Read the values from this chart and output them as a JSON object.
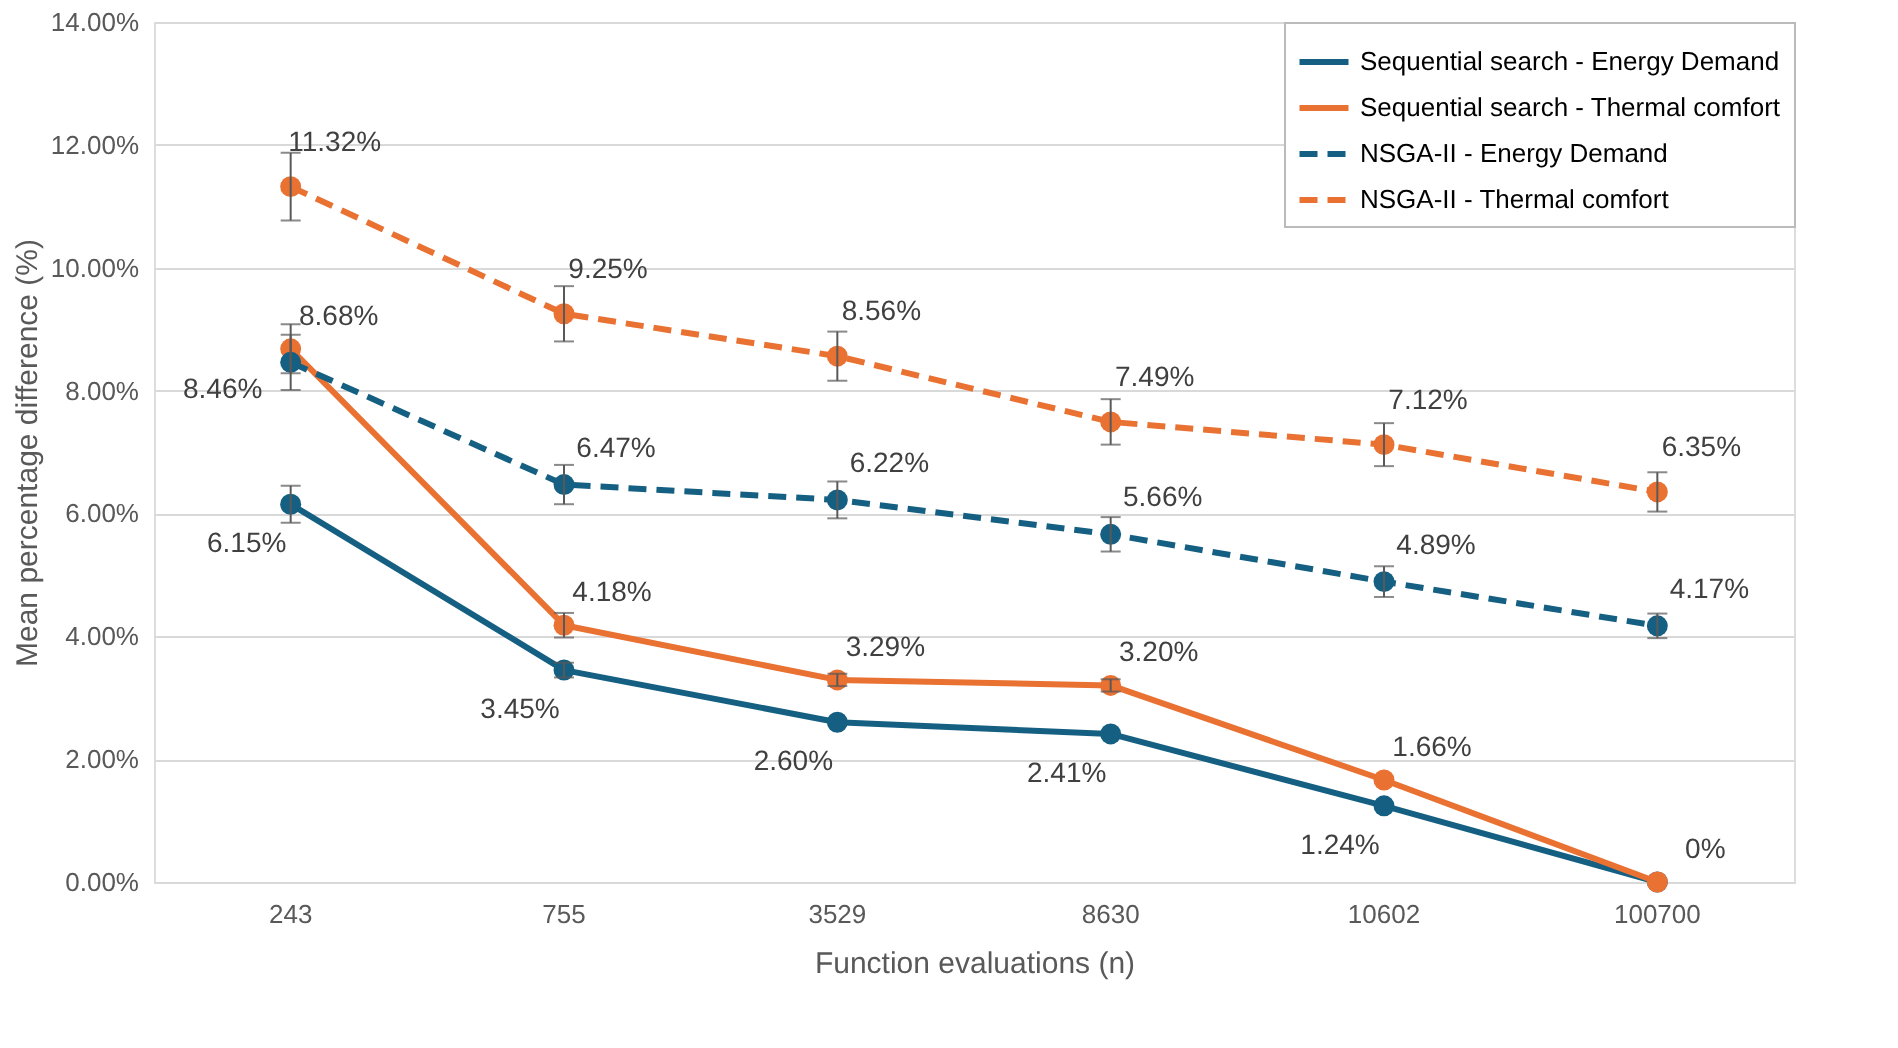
{
  "chart_data": {
    "type": "line",
    "xlabel": "Function evaluations (n)",
    "ylabel": "Mean percentage difference (%)",
    "categories": [
      "243",
      "755",
      "3529",
      "8630",
      "10602",
      "100700"
    ],
    "ylim": [
      0,
      14
    ],
    "yticks": [
      {
        "value": 0,
        "label": "0.00%"
      },
      {
        "value": 2,
        "label": "2.00%"
      },
      {
        "value": 4,
        "label": "4.00%"
      },
      {
        "value": 6,
        "label": "6.00%"
      },
      {
        "value": 8,
        "label": "8.00%"
      },
      {
        "value": 10,
        "label": "10.00%"
      },
      {
        "value": 12,
        "label": "12.00%"
      },
      {
        "value": 14,
        "label": "14.00%"
      }
    ],
    "grid": "y",
    "legend": "top right",
    "marker": "circle",
    "series": [
      {
        "name": "Sequential search - Energy Demand",
        "color": "#156082",
        "line_style": "solid",
        "values": [
          6.15,
          3.45,
          2.6,
          2.41,
          1.24,
          0
        ],
        "errors": [
          0.3,
          0.12,
          null,
          null,
          null,
          null
        ],
        "value_labels": [
          "6.15%",
          "3.45%",
          "2.60%",
          "2.41%",
          "1.24%",
          null
        ]
      },
      {
        "name": "Sequential search - Thermal comfort",
        "color": "#e97132",
        "line_style": "solid",
        "values": [
          8.68,
          4.18,
          3.29,
          3.2,
          1.66,
          0
        ],
        "errors": [
          0.4,
          0.2,
          0.1,
          0.1,
          null,
          null
        ],
        "value_labels": [
          "8.68%",
          "4.18%",
          "3.29%",
          "3.20%",
          "1.66%",
          "0%"
        ]
      },
      {
        "name": "NSGA-II - Energy Demand",
        "color": "#156082",
        "line_style": "dashed",
        "values": [
          8.46,
          6.47,
          6.22,
          5.66,
          4.89,
          4.17
        ],
        "errors": [
          0.45,
          0.32,
          0.3,
          0.28,
          0.25,
          0.2
        ],
        "value_labels": [
          "8.46%",
          "6.47%",
          "6.22%",
          "5.66%",
          "4.89%",
          "4.17%"
        ]
      },
      {
        "name": "NSGA-II - Thermal comfort",
        "color": "#e97132",
        "line_style": "dashed",
        "values": [
          11.32,
          9.25,
          8.56,
          7.49,
          7.12,
          6.35
        ],
        "errors": [
          0.55,
          0.45,
          0.4,
          0.37,
          0.35,
          0.32
        ],
        "value_labels": [
          "11.32%",
          "9.25%",
          "8.56%",
          "7.49%",
          "7.12%",
          "6.35%"
        ]
      }
    ]
  }
}
